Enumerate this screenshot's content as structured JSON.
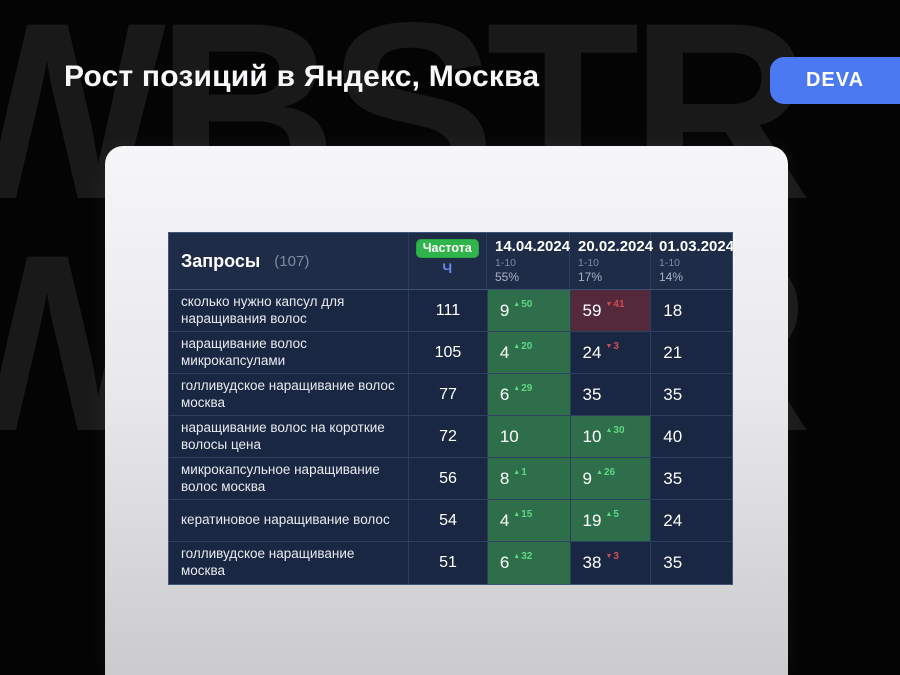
{
  "slide": {
    "title": "Рост позиций в Яндекс, Москва",
    "brand_badge": "DEVA",
    "watermark_text": "WBSTR"
  },
  "colors": {
    "accent_blue": "#4a79f2",
    "table_navy": "#192742",
    "cell_green": "#2f6e4b",
    "cell_red": "#54293a",
    "badge_green": "#2fb54b",
    "delta_up": "#5fd784",
    "delta_down": "#d14b57"
  },
  "table": {
    "queries_header": "Запросы",
    "queries_count": "(107)",
    "frequency_badge": "Частота",
    "frequency_link": "Ч",
    "date_columns": [
      {
        "date": "14.04.2024",
        "range": "1-10",
        "percent": "55%"
      },
      {
        "date": "20.02.2024",
        "range": "1-10",
        "percent": "17%"
      },
      {
        "date": "01.03.2024",
        "range": "1-10",
        "percent": "14%"
      }
    ],
    "rows": [
      {
        "query": "сколько нужно капсул для наращивания волос",
        "freq": "111",
        "cells": [
          {
            "value": "9",
            "delta": "50",
            "dir": "up",
            "bg": "green"
          },
          {
            "value": "59",
            "delta": "41",
            "dir": "down",
            "bg": "red"
          },
          {
            "value": "18",
            "delta": "",
            "dir": "",
            "bg": "plain"
          }
        ]
      },
      {
        "query": "наращивание волос микрокапсулами",
        "freq": "105",
        "cells": [
          {
            "value": "4",
            "delta": "20",
            "dir": "up",
            "bg": "green"
          },
          {
            "value": "24",
            "delta": "3",
            "dir": "down",
            "bg": "plain"
          },
          {
            "value": "21",
            "delta": "",
            "dir": "",
            "bg": "plain"
          }
        ]
      },
      {
        "query": "голливудское наращивание волос москва",
        "freq": "77",
        "cells": [
          {
            "value": "6",
            "delta": "29",
            "dir": "up",
            "bg": "green"
          },
          {
            "value": "35",
            "delta": "",
            "dir": "",
            "bg": "plain"
          },
          {
            "value": "35",
            "delta": "",
            "dir": "",
            "bg": "plain"
          }
        ]
      },
      {
        "query": "наращивание волос на короткие волосы цена",
        "freq": "72",
        "cells": [
          {
            "value": "10",
            "delta": "",
            "dir": "",
            "bg": "green"
          },
          {
            "value": "10",
            "delta": "30",
            "dir": "up",
            "bg": "green"
          },
          {
            "value": "40",
            "delta": "",
            "dir": "",
            "bg": "plain"
          }
        ]
      },
      {
        "query": "микрокапсульное наращивание волос москва",
        "freq": "56",
        "cells": [
          {
            "value": "8",
            "delta": "1",
            "dir": "up",
            "bg": "green"
          },
          {
            "value": "9",
            "delta": "26",
            "dir": "up",
            "bg": "green"
          },
          {
            "value": "35",
            "delta": "",
            "dir": "",
            "bg": "plain"
          }
        ]
      },
      {
        "query": "кератиновое наращивание волос",
        "freq": "54",
        "cells": [
          {
            "value": "4",
            "delta": "15",
            "dir": "up",
            "bg": "green"
          },
          {
            "value": "19",
            "delta": "5",
            "dir": "up",
            "bg": "green"
          },
          {
            "value": "24",
            "delta": "",
            "dir": "",
            "bg": "plain"
          }
        ]
      },
      {
        "query": "голливудское наращивание москва",
        "freq": "51",
        "cells": [
          {
            "value": "6",
            "delta": "32",
            "dir": "up",
            "bg": "green"
          },
          {
            "value": "38",
            "delta": "3",
            "dir": "down",
            "bg": "plain"
          },
          {
            "value": "35",
            "delta": "",
            "dir": "",
            "bg": "plain"
          }
        ]
      }
    ]
  }
}
